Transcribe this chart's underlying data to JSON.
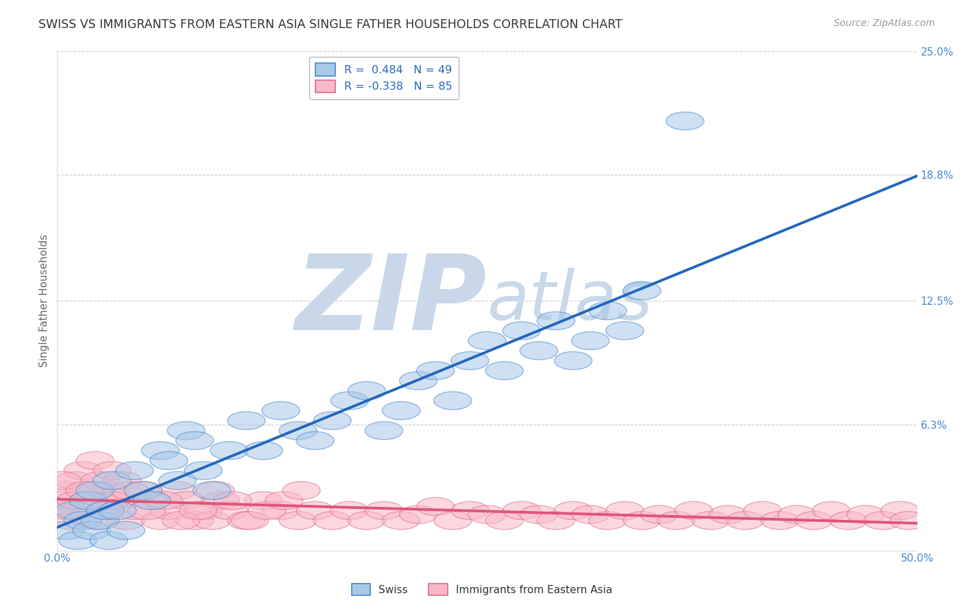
{
  "title": "SWISS VS IMMIGRANTS FROM EASTERN ASIA SINGLE FATHER HOUSEHOLDS CORRELATION CHART",
  "source": "Source: ZipAtlas.com",
  "ylabel": "Single Father Households",
  "swiss_R": 0.484,
  "swiss_N": 49,
  "immig_R": -0.338,
  "immig_N": 85,
  "blue_fill": "#a8c8e8",
  "blue_edge": "#4488cc",
  "pink_fill": "#f8b8c8",
  "pink_edge": "#e06888",
  "blue_line": "#2266bb",
  "pink_line": "#dd5577",
  "background": "#ffffff",
  "watermark_zip_color": "#c8d8e8",
  "watermark_atlas_color": "#c8d8e8",
  "grid_color": "#cccccc",
  "right_tick_color": "#4488cc",
  "xtick_color": "#4488cc",
  "xlim": [
    0.0,
    50.0
  ],
  "ylim": [
    0.0,
    25.0
  ],
  "swiss_x": [
    0.5,
    1.0,
    1.2,
    1.5,
    1.8,
    2.0,
    2.2,
    2.5,
    2.8,
    3.0,
    3.2,
    3.5,
    4.0,
    4.5,
    5.0,
    5.5,
    6.0,
    6.5,
    7.0,
    7.5,
    8.0,
    8.5,
    9.0,
    10.0,
    11.0,
    12.0,
    13.0,
    14.0,
    15.0,
    16.0,
    17.0,
    18.0,
    19.0,
    20.0,
    21.0,
    22.0,
    23.0,
    24.0,
    25.0,
    26.0,
    27.0,
    28.0,
    29.0,
    30.0,
    31.0,
    32.0,
    33.0,
    34.0,
    36.5
  ],
  "swiss_y": [
    1.0,
    2.0,
    0.5,
    1.5,
    2.5,
    1.0,
    3.0,
    1.5,
    2.0,
    0.5,
    3.5,
    2.0,
    1.0,
    4.0,
    3.0,
    2.5,
    5.0,
    4.5,
    3.5,
    6.0,
    5.5,
    4.0,
    3.0,
    5.0,
    6.5,
    5.0,
    7.0,
    6.0,
    5.5,
    6.5,
    7.5,
    8.0,
    6.0,
    7.0,
    8.5,
    9.0,
    7.5,
    9.5,
    10.5,
    9.0,
    11.0,
    10.0,
    11.5,
    9.5,
    10.5,
    12.0,
    11.0,
    13.0,
    21.5
  ],
  "immig_x": [
    0.2,
    0.5,
    0.8,
    1.0,
    1.2,
    1.5,
    1.8,
    2.0,
    2.2,
    2.5,
    2.8,
    3.0,
    3.2,
    3.5,
    3.8,
    4.0,
    4.5,
    5.0,
    5.5,
    6.0,
    6.5,
    7.0,
    7.5,
    8.0,
    8.5,
    9.0,
    9.5,
    10.0,
    11.0,
    12.0,
    13.0,
    14.0,
    15.0,
    16.0,
    17.0,
    18.0,
    19.0,
    20.0,
    21.0,
    22.0,
    23.0,
    24.0,
    25.0,
    26.0,
    27.0,
    28.0,
    29.0,
    30.0,
    31.0,
    32.0,
    33.0,
    34.0,
    35.0,
    36.0,
    37.0,
    38.0,
    39.0,
    40.0,
    41.0,
    42.0,
    43.0,
    44.0,
    45.0,
    46.0,
    47.0,
    48.0,
    49.0,
    49.5,
    0.3,
    0.6,
    1.1,
    1.6,
    2.3,
    3.1,
    4.2,
    5.2,
    6.2,
    7.2,
    8.2,
    9.2,
    10.2,
    11.2,
    12.2,
    13.2,
    14.2
  ],
  "immig_y": [
    2.5,
    3.0,
    1.5,
    3.5,
    2.0,
    4.0,
    3.0,
    2.5,
    4.5,
    3.5,
    2.0,
    3.0,
    4.0,
    2.5,
    3.5,
    1.5,
    2.0,
    3.0,
    2.5,
    1.5,
    2.0,
    3.0,
    2.5,
    1.5,
    2.0,
    1.5,
    2.5,
    2.0,
    1.5,
    2.5,
    2.0,
    1.5,
    2.0,
    1.5,
    2.0,
    1.5,
    2.0,
    1.5,
    1.8,
    2.2,
    1.5,
    2.0,
    1.8,
    1.5,
    2.0,
    1.8,
    1.5,
    2.0,
    1.8,
    1.5,
    2.0,
    1.5,
    1.8,
    1.5,
    2.0,
    1.5,
    1.8,
    1.5,
    2.0,
    1.5,
    1.8,
    1.5,
    2.0,
    1.5,
    1.8,
    1.5,
    2.0,
    1.5,
    3.5,
    2.0,
    2.5,
    3.0,
    1.5,
    2.5,
    3.0,
    2.0,
    2.5,
    1.5,
    2.0,
    3.0,
    2.5,
    1.5,
    2.0,
    2.5,
    3.0
  ]
}
